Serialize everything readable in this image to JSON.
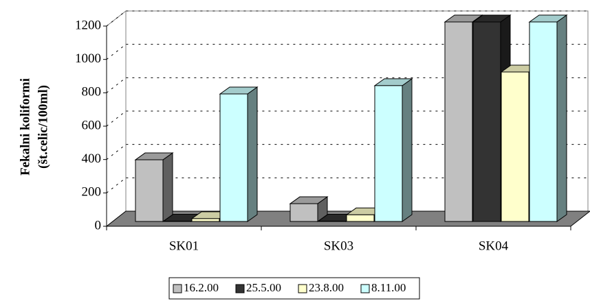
{
  "chart_data": {
    "type": "bar3d",
    "y_label_lines": [
      "Fekalni koliformi",
      "(št.celic/100ml)"
    ],
    "categories": [
      "SK01",
      "SK03",
      "SK04"
    ],
    "series": [
      {
        "name": "16.2.00",
        "color": "#c0c0c0",
        "values": [
          371,
          107,
          1200
        ]
      },
      {
        "name": "25.5.00",
        "color": "#333333",
        "values": [
          2,
          2,
          1200
        ]
      },
      {
        "name": "23.8.00",
        "color": "#ffffcc",
        "values": [
          17,
          40,
          899
        ]
      },
      {
        "name": "8.11.00",
        "color": "#ccffff",
        "values": [
          767,
          817,
          1200
        ]
      }
    ],
    "ylim": [
      0,
      1200
    ],
    "yticks": [
      0,
      200,
      400,
      600,
      800,
      1000,
      1200
    ],
    "grid": true,
    "legend": "bottom"
  }
}
